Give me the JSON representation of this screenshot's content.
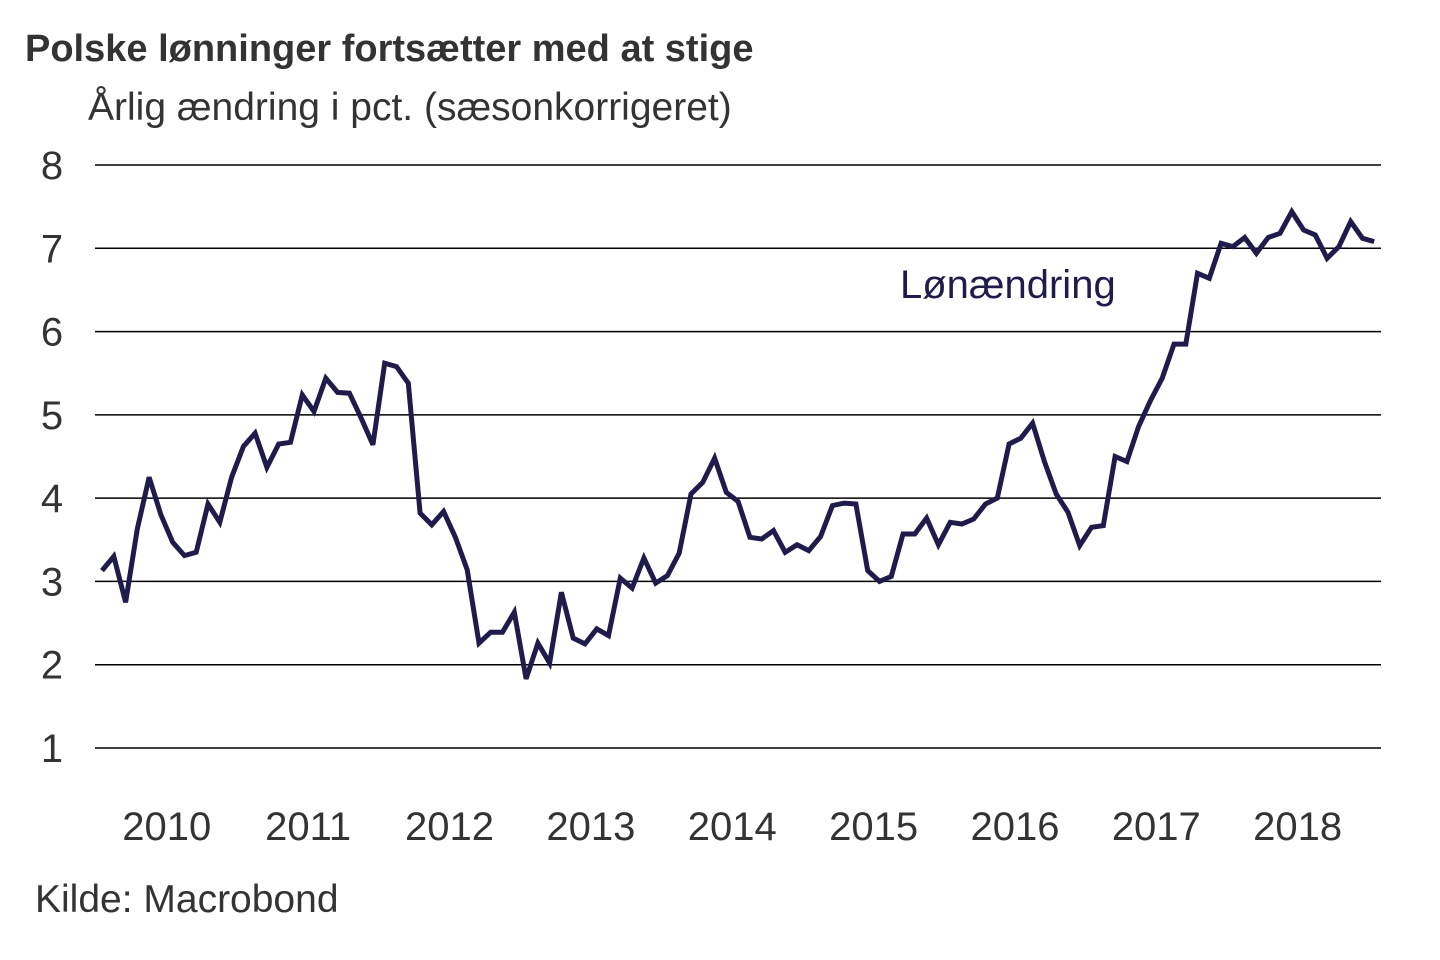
{
  "chart_data": {
    "type": "line",
    "title": "Polske lønninger fortsætter med at stige",
    "subtitle": "Årlig ændring i pct. (sæsonkorrigeret)",
    "source": "Kilde: Macrobond",
    "xlabel": "",
    "ylabel": "",
    "ylim": [
      1,
      8
    ],
    "yticks": [
      1,
      2,
      3,
      4,
      5,
      6,
      7,
      8
    ],
    "xtick_labels": [
      "2010",
      "2011",
      "2012",
      "2013",
      "2014",
      "2015",
      "2016",
      "2017",
      "2018"
    ],
    "grid": "horizontal",
    "line_color": "#1f1b4b",
    "series": [
      {
        "name": "Lønændring",
        "x": [
          "2010-01",
          "2010-02",
          "2010-03",
          "2010-04",
          "2010-05",
          "2010-06",
          "2010-07",
          "2010-08",
          "2010-09",
          "2010-10",
          "2010-11",
          "2010-12",
          "2011-01",
          "2011-02",
          "2011-03",
          "2011-04",
          "2011-05",
          "2011-06",
          "2011-07",
          "2011-08",
          "2011-09",
          "2011-10",
          "2011-11",
          "2011-12",
          "2012-01",
          "2012-02",
          "2012-03",
          "2012-04",
          "2012-05",
          "2012-06",
          "2012-07",
          "2012-08",
          "2012-09",
          "2012-10",
          "2012-11",
          "2012-12",
          "2013-01",
          "2013-02",
          "2013-03",
          "2013-04",
          "2013-05",
          "2013-06",
          "2013-07",
          "2013-08",
          "2013-09",
          "2013-10",
          "2013-11",
          "2013-12",
          "2014-01",
          "2014-02",
          "2014-03",
          "2014-04",
          "2014-05",
          "2014-06",
          "2014-07",
          "2014-08",
          "2014-09",
          "2014-10",
          "2014-11",
          "2014-12",
          "2015-01",
          "2015-02",
          "2015-03",
          "2015-04",
          "2015-05",
          "2015-06",
          "2015-07",
          "2015-08",
          "2015-09",
          "2015-10",
          "2015-11",
          "2015-12",
          "2016-01",
          "2016-02",
          "2016-03",
          "2016-04",
          "2016-05",
          "2016-06",
          "2016-07",
          "2016-08",
          "2016-09",
          "2016-10",
          "2016-11",
          "2016-12",
          "2017-01",
          "2017-02",
          "2017-03",
          "2017-04",
          "2017-05",
          "2017-06",
          "2017-07",
          "2017-08",
          "2017-09",
          "2017-10",
          "2017-11",
          "2017-12",
          "2018-01",
          "2018-02",
          "2018-03",
          "2018-04",
          "2018-05",
          "2018-06",
          "2018-07",
          "2018-08",
          "2018-09",
          "2018-10",
          "2018-11",
          "2018-12",
          "2019-01"
        ],
        "values": [
          3.13,
          3.3,
          2.75,
          3.63,
          4.25,
          3.8,
          3.47,
          3.31,
          3.35,
          3.93,
          3.71,
          4.25,
          4.62,
          4.78,
          4.37,
          4.65,
          4.67,
          5.24,
          5.04,
          5.44,
          5.27,
          5.26,
          4.96,
          4.64,
          5.62,
          5.58,
          5.38,
          3.82,
          3.68,
          3.84,
          3.53,
          3.14,
          2.26,
          2.39,
          2.39,
          2.63,
          1.83,
          2.26,
          2.02,
          2.87,
          2.32,
          2.25,
          2.43,
          2.35,
          3.04,
          2.92,
          3.28,
          2.98,
          3.07,
          3.34,
          4.05,
          4.19,
          4.48,
          4.07,
          3.96,
          3.53,
          3.51,
          3.61,
          3.35,
          3.44,
          3.37,
          3.54,
          3.91,
          3.94,
          3.93,
          3.13,
          3.0,
          3.06,
          3.57,
          3.57,
          3.76,
          3.44,
          3.71,
          3.69,
          3.75,
          3.93,
          4.0,
          4.65,
          4.72,
          4.9,
          4.44,
          4.05,
          3.83,
          3.43,
          3.65,
          3.67,
          4.5,
          4.44,
          4.86,
          5.17,
          5.44,
          5.85,
          5.85,
          6.7,
          6.64,
          7.06,
          7.02,
          7.13,
          6.94,
          7.13,
          7.18,
          7.44,
          7.22,
          7.16,
          6.88,
          7.02,
          7.32,
          7.12,
          7.08
        ]
      }
    ]
  }
}
